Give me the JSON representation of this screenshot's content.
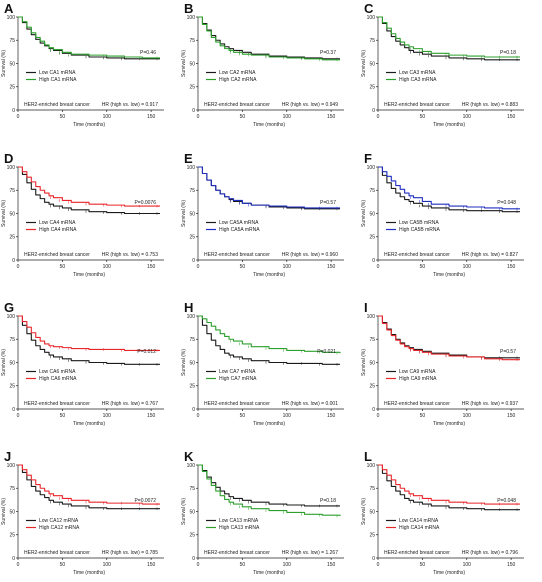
{
  "colors": {
    "low": "#1a1a1a",
    "green": "#2ca02c",
    "red": "#e8262a",
    "blue": "#1f2fbf"
  },
  "chart_data": [
    {
      "letter": "A",
      "type": "line",
      "xlabel": "Time (months)",
      "ylabel": "Survival (%)",
      "xlim": [
        0,
        160
      ],
      "ylim": [
        0,
        100
      ],
      "xticks": [
        "0",
        "50",
        "100",
        "150"
      ],
      "yticks": [
        "0",
        "25",
        "50",
        "75",
        "100"
      ],
      "x": [
        0,
        5,
        10,
        15,
        20,
        25,
        30,
        35,
        40,
        50,
        60,
        80,
        100,
        120,
        140,
        160
      ],
      "series": [
        {
          "name": "Low CA1 mRNA",
          "color_key": "low",
          "values": [
            100,
            94,
            87,
            81,
            76,
            72,
            69,
            66,
            64,
            61,
            59,
            57,
            56,
            55,
            55,
            55
          ]
        },
        {
          "name": "High CA1 mRNA",
          "color_key": "green",
          "values": [
            100,
            95,
            89,
            83,
            78,
            74,
            70,
            67,
            65,
            62,
            60,
            59,
            58,
            57,
            56,
            56
          ]
        }
      ],
      "p_text": "P=0.46",
      "cohort": "HER2-enriched breast cancer",
      "hr": "HR (high vs. low) = 0.917"
    },
    {
      "letter": "B",
      "type": "line",
      "xlabel": "Time (months)",
      "ylabel": "Survival (%)",
      "xlim": [
        0,
        160
      ],
      "ylim": [
        0,
        100
      ],
      "xticks": [
        "0",
        "50",
        "100",
        "150"
      ],
      "yticks": [
        "0",
        "25",
        "50",
        "75",
        "100"
      ],
      "x": [
        0,
        5,
        10,
        15,
        20,
        25,
        30,
        35,
        40,
        50,
        60,
        80,
        100,
        120,
        140,
        160
      ],
      "series": [
        {
          "name": "Low CA2 mRNA",
          "color_key": "low",
          "values": [
            100,
            93,
            86,
            80,
            75,
            71,
            68,
            66,
            64,
            62,
            60,
            58,
            57,
            56,
            55,
            55
          ]
        },
        {
          "name": "High CA2 mRNA",
          "color_key": "green",
          "values": [
            100,
            92,
            85,
            78,
            73,
            69,
            66,
            64,
            62,
            60,
            59,
            57,
            56,
            55,
            54,
            54
          ]
        }
      ],
      "p_text": "P=0.37",
      "cohort": "HER2-enriched breast cancer",
      "hr": "HR (high vs. low) = 0.949"
    },
    {
      "letter": "C",
      "type": "line",
      "xlabel": "Time (months)",
      "ylabel": "Survival (%)",
      "xlim": [
        0,
        160
      ],
      "ylim": [
        0,
        100
      ],
      "xticks": [
        "0",
        "50",
        "100",
        "150"
      ],
      "yticks": [
        "0",
        "25",
        "50",
        "75",
        "100"
      ],
      "x": [
        0,
        5,
        10,
        15,
        20,
        25,
        30,
        35,
        40,
        50,
        60,
        80,
        100,
        120,
        140,
        160
      ],
      "series": [
        {
          "name": "Low CA3 mRNA",
          "color_key": "low",
          "values": [
            100,
            93,
            85,
            79,
            74,
            70,
            67,
            64,
            62,
            60,
            58,
            56,
            55,
            54,
            54,
            54
          ]
        },
        {
          "name": "High CA3 mRNA",
          "color_key": "green",
          "values": [
            100,
            94,
            88,
            82,
            77,
            73,
            70,
            68,
            66,
            63,
            61,
            59,
            58,
            57,
            57,
            57
          ]
        }
      ],
      "p_text": "P=0.18",
      "cohort": "HER2-enriched breast cancer",
      "hr": "HR (high vs. low) = 0.883"
    },
    {
      "letter": "D",
      "type": "line",
      "xlabel": "Time (months)",
      "ylabel": "Survival (%)",
      "xlim": [
        0,
        160
      ],
      "ylim": [
        0,
        100
      ],
      "xticks": [
        "0",
        "50",
        "100",
        "150"
      ],
      "yticks": [
        "0",
        "25",
        "50",
        "75",
        "100"
      ],
      "x": [
        0,
        5,
        10,
        15,
        20,
        25,
        30,
        35,
        40,
        50,
        60,
        80,
        100,
        120,
        140,
        160
      ],
      "series": [
        {
          "name": "Low CA4 mRNA",
          "color_key": "low",
          "values": [
            100,
            92,
            83,
            76,
            70,
            66,
            62,
            60,
            58,
            56,
            54,
            52,
            51,
            50,
            50,
            50
          ]
        },
        {
          "name": "High CA4 mRNA",
          "color_key": "red",
          "values": [
            100,
            95,
            89,
            84,
            79,
            75,
            72,
            69,
            67,
            64,
            62,
            60,
            59,
            58,
            58,
            58
          ]
        }
      ],
      "p_text": "P=0.0076",
      "cohort": "HER2-enriched breast cancer",
      "hr": "HR (high vs. low) = 0.753"
    },
    {
      "letter": "E",
      "type": "line",
      "xlabel": "Time (months)",
      "ylabel": "Survival (%)",
      "xlim": [
        0,
        160
      ],
      "ylim": [
        0,
        100
      ],
      "xticks": [
        "0",
        "50",
        "100",
        "150"
      ],
      "yticks": [
        "0",
        "25",
        "50",
        "75",
        "100"
      ],
      "x": [
        0,
        5,
        10,
        15,
        20,
        25,
        30,
        35,
        40,
        50,
        60,
        80,
        100,
        120,
        140,
        160
      ],
      "series": [
        {
          "name": "Low CA5A mRNA",
          "color_key": "low",
          "values": [
            100,
            93,
            86,
            80,
            75,
            71,
            68,
            65,
            63,
            61,
            59,
            57,
            56,
            55,
            55,
            55
          ]
        },
        {
          "name": "High CA5A mRNA",
          "color_key": "blue",
          "values": [
            100,
            93,
            86,
            80,
            75,
            71,
            68,
            66,
            64,
            61,
            59,
            58,
            57,
            56,
            56,
            56
          ]
        }
      ],
      "p_text": "P=0.57",
      "cohort": "HER2-enriched breast cancer",
      "hr": "HR (high vs. low) = 0.960"
    },
    {
      "letter": "F",
      "type": "line",
      "xlabel": "Time (months)",
      "ylabel": "Survival (%)",
      "xlim": [
        0,
        160
      ],
      "ylim": [
        0,
        100
      ],
      "xticks": [
        "0",
        "50",
        "100",
        "150"
      ],
      "yticks": [
        "0",
        "25",
        "50",
        "75",
        "100"
      ],
      "x": [
        0,
        5,
        10,
        15,
        20,
        25,
        30,
        35,
        40,
        50,
        60,
        80,
        100,
        120,
        140,
        160
      ],
      "series": [
        {
          "name": "Low CA5B mRNA",
          "color_key": "low",
          "values": [
            100,
            91,
            83,
            77,
            72,
            68,
            65,
            63,
            61,
            58,
            56,
            54,
            53,
            53,
            52,
            52
          ]
        },
        {
          "name": "High CA5B mRNA",
          "color_key": "blue",
          "values": [
            100,
            95,
            90,
            85,
            80,
            76,
            72,
            69,
            67,
            63,
            60,
            58,
            57,
            56,
            55,
            55
          ]
        }
      ],
      "p_text": "P=0.048",
      "cohort": "HER2-enriched breast cancer",
      "hr": "HR (high vs. low) = 0.827"
    },
    {
      "letter": "G",
      "type": "line",
      "xlabel": "Time (months)",
      "ylabel": "Survival (%)",
      "xlim": [
        0,
        160
      ],
      "ylim": [
        0,
        100
      ],
      "xticks": [
        "0",
        "50",
        "100",
        "150"
      ],
      "yticks": [
        "0",
        "25",
        "50",
        "75",
        "100"
      ],
      "x": [
        0,
        5,
        10,
        15,
        20,
        25,
        30,
        35,
        40,
        50,
        60,
        80,
        100,
        120,
        140,
        160
      ],
      "series": [
        {
          "name": "Low CA6 mRNA",
          "color_key": "low",
          "values": [
            100,
            90,
            81,
            74,
            68,
            64,
            61,
            58,
            56,
            54,
            52,
            50,
            49,
            48,
            48,
            48
          ]
        },
        {
          "name": "High CA6 mRNA",
          "color_key": "red",
          "values": [
            100,
            94,
            88,
            82,
            77,
            73,
            70,
            68,
            67,
            66,
            65,
            64,
            64,
            63,
            63,
            63
          ]
        }
      ],
      "p_text": "P=0.012",
      "cohort": "HER2-enriched breast cancer",
      "hr": "HR (high vs. low) = 0.767"
    },
    {
      "letter": "H",
      "type": "line",
      "xlabel": "Time (months)",
      "ylabel": "Survival (%)",
      "xlim": [
        0,
        160
      ],
      "ylim": [
        0,
        100
      ],
      "xticks": [
        "0",
        "50",
        "100",
        "150"
      ],
      "yticks": [
        "0",
        "25",
        "50",
        "75",
        "100"
      ],
      "x": [
        0,
        5,
        10,
        15,
        20,
        25,
        30,
        35,
        40,
        50,
        60,
        80,
        100,
        120,
        140,
        160
      ],
      "series": [
        {
          "name": "Low CA7 mRNA",
          "color_key": "low",
          "values": [
            100,
            90,
            81,
            74,
            68,
            64,
            60,
            58,
            56,
            54,
            52,
            50,
            49,
            49,
            48,
            48
          ]
        },
        {
          "name": "High CA7 mRNA",
          "color_key": "green",
          "values": [
            100,
            97,
            93,
            89,
            85,
            81,
            78,
            75,
            73,
            70,
            67,
            65,
            63,
            62,
            61,
            60
          ]
        }
      ],
      "p_text": "P=0.021",
      "cohort": "HER2-enriched breast cancer",
      "hr": "HR (high vs. low) = 0.001"
    },
    {
      "letter": "I",
      "type": "line",
      "xlabel": "Time (months)",
      "ylabel": "Survival (%)",
      "xlim": [
        0,
        160
      ],
      "ylim": [
        0,
        100
      ],
      "xticks": [
        "0",
        "50",
        "100",
        "150"
      ],
      "yticks": [
        "0",
        "25",
        "50",
        "75",
        "100"
      ],
      "x": [
        0,
        5,
        10,
        15,
        20,
        25,
        30,
        35,
        40,
        50,
        60,
        80,
        100,
        120,
        140,
        160
      ],
      "series": [
        {
          "name": "Low CA9 mRNA",
          "color_key": "low",
          "values": [
            100,
            93,
            86,
            80,
            75,
            71,
            68,
            66,
            64,
            62,
            60,
            58,
            56,
            55,
            55,
            55
          ]
        },
        {
          "name": "High CA9 mRNA",
          "color_key": "red",
          "values": [
            100,
            92,
            85,
            79,
            74,
            70,
            67,
            65,
            63,
            61,
            59,
            57,
            56,
            54,
            53,
            53
          ]
        }
      ],
      "p_text": "P=0.57",
      "cohort": "HER2-enriched breast cancer",
      "hr": "HR (high vs. low) = 0.937"
    },
    {
      "letter": "J",
      "type": "line",
      "xlabel": "Time (months)",
      "ylabel": "Survival (%)",
      "xlim": [
        0,
        160
      ],
      "ylim": [
        0,
        100
      ],
      "xticks": [
        "0",
        "50",
        "100",
        "150"
      ],
      "yticks": [
        "0",
        "25",
        "50",
        "75",
        "100"
      ],
      "x": [
        0,
        5,
        10,
        15,
        20,
        25,
        30,
        35,
        40,
        50,
        60,
        80,
        100,
        120,
        140,
        160
      ],
      "series": [
        {
          "name": "Low CA12 mRNA",
          "color_key": "low",
          "values": [
            100,
            92,
            84,
            77,
            72,
            68,
            65,
            62,
            60,
            58,
            56,
            54,
            53,
            53,
            53,
            53
          ]
        },
        {
          "name": "High CA12 mRNA",
          "color_key": "red",
          "values": [
            100,
            95,
            89,
            84,
            79,
            75,
            72,
            69,
            67,
            64,
            62,
            60,
            59,
            59,
            58,
            58
          ]
        }
      ],
      "p_text": "P=0.0072",
      "cohort": "HER2-enriched breast cancer",
      "hr": "HR (high vs. low) = 0.785"
    },
    {
      "letter": "K",
      "type": "line",
      "xlabel": "Time (months)",
      "ylabel": "Survival (%)",
      "xlim": [
        0,
        160
      ],
      "ylim": [
        0,
        100
      ],
      "xticks": [
        "0",
        "50",
        "100",
        "150"
      ],
      "yticks": [
        "0",
        "25",
        "50",
        "75",
        "100"
      ],
      "x": [
        0,
        5,
        10,
        15,
        20,
        25,
        30,
        35,
        40,
        50,
        60,
        80,
        100,
        120,
        140,
        160
      ],
      "series": [
        {
          "name": "Low CA13 mRNA",
          "color_key": "low",
          "values": [
            100,
            94,
            87,
            81,
            76,
            72,
            69,
            66,
            64,
            62,
            60,
            58,
            57,
            56,
            56,
            56
          ]
        },
        {
          "name": "High CA13 mRNA",
          "color_key": "green",
          "values": [
            100,
            93,
            85,
            78,
            72,
            67,
            63,
            60,
            58,
            55,
            53,
            51,
            49,
            47,
            46,
            45
          ]
        }
      ],
      "p_text": "P=0.18",
      "cohort": "HER2-enriched breast cancer",
      "hr": "HR (high vs. low) = 1.267"
    },
    {
      "letter": "L",
      "type": "line",
      "xlabel": "Time (months)",
      "ylabel": "Survival (%)",
      "xlim": [
        0,
        160
      ],
      "ylim": [
        0,
        100
      ],
      "xticks": [
        "0",
        "50",
        "100",
        "150"
      ],
      "yticks": [
        "0",
        "25",
        "50",
        "75",
        "100"
      ],
      "x": [
        0,
        5,
        10,
        15,
        20,
        25,
        30,
        35,
        40,
        50,
        60,
        80,
        100,
        120,
        140,
        160
      ],
      "series": [
        {
          "name": "Low CA14 mRNA",
          "color_key": "low",
          "values": [
            100,
            91,
            83,
            77,
            72,
            68,
            64,
            62,
            60,
            58,
            56,
            54,
            53,
            52,
            52,
            52
          ]
        },
        {
          "name": "High CA14 mRNA",
          "color_key": "red",
          "values": [
            100,
            95,
            89,
            84,
            79,
            75,
            72,
            69,
            67,
            64,
            62,
            60,
            59,
            58,
            58,
            58
          ]
        }
      ],
      "p_text": "P=0.048",
      "cohort": "HER2-enriched breast cancer",
      "hr": "HR (high vs. low) = 0.796"
    }
  ]
}
